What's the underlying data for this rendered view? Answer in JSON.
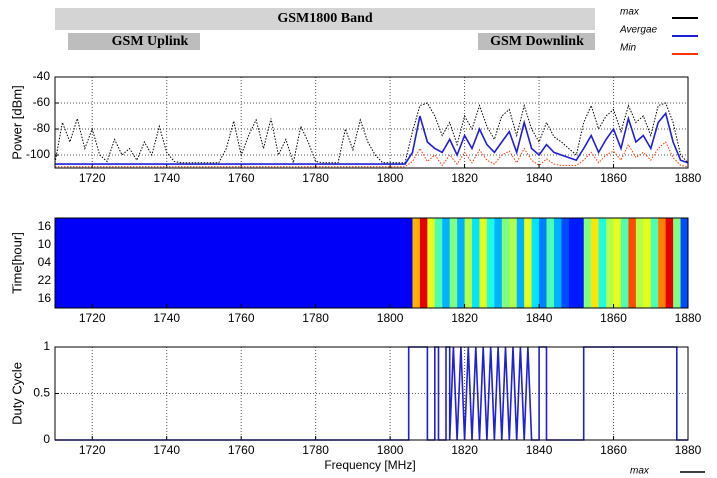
{
  "header": {
    "title": "GSM1800 Band",
    "uplink": "GSM Uplink",
    "downlink": "GSM Downlink",
    "footer_legend": "max"
  },
  "chart_data": [
    {
      "type": "line",
      "ylabel": "Power [dBm]",
      "xlim": [
        1710,
        1880
      ],
      "xticks": [
        1720,
        1740,
        1760,
        1780,
        1800,
        1820,
        1840,
        1860,
        1880
      ],
      "ylim": [
        -110,
        -40
      ],
      "yticks": [
        -40,
        -60,
        -80,
        -100
      ],
      "grid": true,
      "x": [
        1710,
        1712,
        1714,
        1716,
        1718,
        1720,
        1722,
        1724,
        1726,
        1728,
        1730,
        1732,
        1734,
        1736,
        1738,
        1740,
        1742,
        1744,
        1746,
        1748,
        1750,
        1752,
        1754,
        1756,
        1758,
        1760,
        1762,
        1764,
        1766,
        1768,
        1770,
        1772,
        1774,
        1776,
        1778,
        1780,
        1782,
        1784,
        1786,
        1788,
        1790,
        1792,
        1794,
        1796,
        1798,
        1800,
        1802,
        1804,
        1806,
        1808,
        1810,
        1812,
        1814,
        1816,
        1818,
        1820,
        1822,
        1824,
        1826,
        1828,
        1830,
        1832,
        1834,
        1836,
        1838,
        1840,
        1842,
        1844,
        1846,
        1848,
        1850,
        1852,
        1854,
        1856,
        1858,
        1860,
        1862,
        1864,
        1866,
        1868,
        1870,
        1872,
        1874,
        1876,
        1878,
        1880
      ],
      "series": [
        {
          "name": "max",
          "color": "#000000",
          "style": "dotted",
          "values": [
            -106,
            -75,
            -90,
            -72,
            -95,
            -80,
            -100,
            -105,
            -88,
            -100,
            -95,
            -104,
            -90,
            -100,
            -78,
            -98,
            -105,
            -106,
            -106,
            -106,
            -106,
            -106,
            -106,
            -95,
            -74,
            -100,
            -85,
            -73,
            -95,
            -72,
            -100,
            -88,
            -106,
            -78,
            -90,
            -105,
            -106,
            -106,
            -106,
            -80,
            -96,
            -73,
            -90,
            -100,
            -106,
            -106,
            -106,
            -106,
            -82,
            -62,
            -60,
            -70,
            -85,
            -75,
            -92,
            -70,
            -80,
            -62,
            -78,
            -88,
            -70,
            -65,
            -85,
            -62,
            -80,
            -90,
            -75,
            -86,
            -90,
            -95,
            -100,
            -75,
            -62,
            -80,
            -70,
            -65,
            -82,
            -62,
            -75,
            -70,
            -85,
            -62,
            -60,
            -75,
            -100,
            -106
          ]
        },
        {
          "name": "Avergae",
          "color": "#1f1fd6",
          "style": "solid",
          "values": [
            -107,
            -107,
            -107,
            -107,
            -107,
            -107,
            -107,
            -107,
            -107,
            -107,
            -107,
            -107,
            -107,
            -107,
            -107,
            -107,
            -107,
            -107,
            -107,
            -107,
            -107,
            -107,
            -107,
            -107,
            -107,
            -107,
            -107,
            -107,
            -107,
            -107,
            -107,
            -107,
            -107,
            -107,
            -107,
            -107,
            -107,
            -107,
            -107,
            -107,
            -107,
            -107,
            -107,
            -107,
            -107,
            -107,
            -107,
            -107,
            -98,
            -70,
            -90,
            -95,
            -98,
            -88,
            -100,
            -85,
            -95,
            -80,
            -92,
            -98,
            -90,
            -82,
            -98,
            -75,
            -95,
            -100,
            -92,
            -98,
            -100,
            -102,
            -104,
            -95,
            -85,
            -98,
            -88,
            -80,
            -95,
            -72,
            -90,
            -85,
            -95,
            -75,
            -68,
            -90,
            -104,
            -106
          ]
        },
        {
          "name": "Min",
          "color": "#ff3300",
          "style": "dotted",
          "values": [
            -109,
            -109,
            -109,
            -109,
            -109,
            -109,
            -109,
            -109,
            -109,
            -109,
            -109,
            -109,
            -109,
            -109,
            -109,
            -109,
            -109,
            -109,
            -109,
            -109,
            -109,
            -109,
            -109,
            -109,
            -109,
            -109,
            -109,
            -109,
            -109,
            -109,
            -109,
            -109,
            -109,
            -109,
            -109,
            -109,
            -109,
            -109,
            -109,
            -109,
            -109,
            -109,
            -109,
            -109,
            -109,
            -109,
            -109,
            -109,
            -105,
            -95,
            -105,
            -100,
            -108,
            -100,
            -107,
            -98,
            -106,
            -96,
            -104,
            -107,
            -100,
            -97,
            -106,
            -95,
            -104,
            -108,
            -103,
            -107,
            -108,
            -108,
            -108,
            -104,
            -98,
            -106,
            -100,
            -97,
            -104,
            -92,
            -102,
            -98,
            -104,
            -95,
            -90,
            -102,
            -108,
            -109
          ]
        }
      ]
    },
    {
      "type": "heatmap",
      "ylabel": "Time[hour]",
      "xlim": [
        1710,
        1880
      ],
      "xticks": [
        1720,
        1740,
        1760,
        1780,
        1800,
        1820,
        1840,
        1860,
        1880
      ],
      "y_categories": [
        "16",
        "10",
        "04",
        "22",
        "16"
      ],
      "zlim": [
        0,
        1
      ],
      "x": [
        1710,
        1712,
        1714,
        1716,
        1718,
        1720,
        1722,
        1724,
        1726,
        1728,
        1730,
        1732,
        1734,
        1736,
        1738,
        1740,
        1742,
        1744,
        1746,
        1748,
        1750,
        1752,
        1754,
        1756,
        1758,
        1760,
        1762,
        1764,
        1766,
        1768,
        1770,
        1772,
        1774,
        1776,
        1778,
        1780,
        1782,
        1784,
        1786,
        1788,
        1790,
        1792,
        1794,
        1796,
        1798,
        1800,
        1802,
        1804,
        1806,
        1808,
        1810,
        1812,
        1814,
        1816,
        1818,
        1820,
        1822,
        1824,
        1826,
        1828,
        1830,
        1832,
        1834,
        1836,
        1838,
        1840,
        1842,
        1844,
        1846,
        1848,
        1850,
        1852,
        1854,
        1856,
        1858,
        1860,
        1862,
        1864,
        1866,
        1868,
        1870,
        1872,
        1874,
        1876,
        1878
      ],
      "values": [
        0.12,
        0.12,
        0.12,
        0.12,
        0.12,
        0.12,
        0.12,
        0.12,
        0.12,
        0.12,
        0.12,
        0.12,
        0.12,
        0.12,
        0.12,
        0.12,
        0.12,
        0.12,
        0.12,
        0.12,
        0.12,
        0.12,
        0.12,
        0.12,
        0.12,
        0.12,
        0.12,
        0.12,
        0.12,
        0.12,
        0.12,
        0.12,
        0.12,
        0.12,
        0.12,
        0.12,
        0.12,
        0.12,
        0.12,
        0.12,
        0.12,
        0.12,
        0.12,
        0.12,
        0.12,
        0.12,
        0.12,
        0.12,
        0.7,
        0.9,
        0.6,
        0.45,
        0.3,
        0.5,
        0.3,
        0.55,
        0.35,
        0.6,
        0.4,
        0.3,
        0.5,
        0.55,
        0.3,
        0.6,
        0.35,
        0.25,
        0.45,
        0.3,
        0.2,
        0.15,
        0.15,
        0.5,
        0.65,
        0.4,
        0.55,
        0.6,
        0.45,
        0.8,
        0.55,
        0.6,
        0.45,
        0.75,
        0.9,
        0.5,
        0.2
      ]
    },
    {
      "type": "line",
      "ylabel": "Duty Cycle",
      "xlabel": "Frequency [MHz]",
      "xlim": [
        1710,
        1880
      ],
      "xticks": [
        1720,
        1740,
        1760,
        1780,
        1800,
        1820,
        1840,
        1860,
        1880
      ],
      "ylim": [
        0,
        1
      ],
      "yticks": [
        0,
        0.5,
        1
      ],
      "grid": true,
      "color": "#1f1fd6",
      "x": [
        1710,
        1805,
        1805,
        1810,
        1810,
        1812,
        1812,
        1813,
        1813,
        1815,
        1815,
        1816,
        1816,
        1817,
        1818,
        1819,
        1820,
        1821,
        1822,
        1823,
        1824,
        1825,
        1826,
        1827,
        1828,
        1829,
        1830,
        1831,
        1832,
        1833,
        1834,
        1835,
        1836,
        1837,
        1838,
        1840,
        1840,
        1842,
        1842,
        1852,
        1852,
        1877,
        1877,
        1880
      ],
      "values": [
        0,
        0,
        1,
        1,
        0,
        0,
        1,
        1,
        0,
        0,
        1,
        1,
        0,
        1,
        0,
        1,
        0,
        1,
        0,
        1,
        0,
        1,
        0,
        1,
        0,
        1,
        0,
        1,
        0,
        1,
        0,
        1,
        0,
        1,
        0,
        0,
        1,
        1,
        0,
        0,
        1,
        1,
        0,
        0
      ]
    }
  ]
}
